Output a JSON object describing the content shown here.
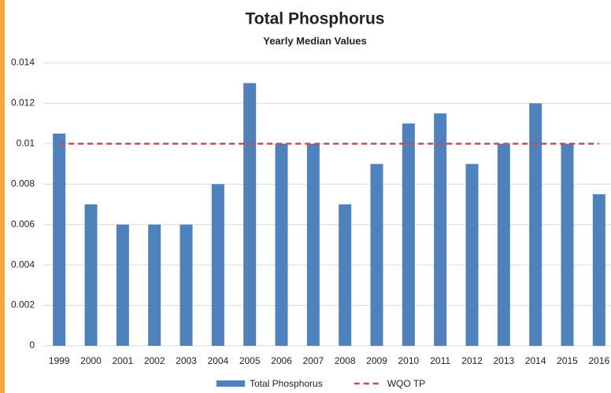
{
  "chart_data": {
    "type": "bar",
    "title": "Total Phosphorus",
    "subtitle": "Yearly Median Values",
    "categories": [
      "1999",
      "2000",
      "2001",
      "2002",
      "2003",
      "2004",
      "2005",
      "2006",
      "2007",
      "2008",
      "2009",
      "2010",
      "2011",
      "2012",
      "2013",
      "2014",
      "2015",
      "2016"
    ],
    "series": [
      {
        "name": "Total Phosphorus",
        "color": "#4f81bd",
        "type": "bar",
        "values": [
          0.0105,
          0.007,
          0.006,
          0.006,
          0.006,
          0.008,
          0.013,
          0.01,
          0.01,
          0.007,
          0.009,
          0.011,
          0.0115,
          0.009,
          0.01,
          0.012,
          0.01,
          0.0075
        ]
      },
      {
        "name": "WQO TP",
        "color": "#c0504d",
        "type": "line",
        "dashed": true,
        "values": [
          0.01,
          0.01,
          0.01,
          0.01,
          0.01,
          0.01,
          0.01,
          0.01,
          0.01,
          0.01,
          0.01,
          0.01,
          0.01,
          0.01,
          0.01,
          0.01,
          0.01,
          0.01
        ]
      }
    ],
    "ylim": [
      0,
      0.014
    ],
    "yticks": [
      0,
      0.002,
      0.004,
      0.006,
      0.008,
      0.01,
      0.012,
      0.014
    ],
    "grid": true,
    "legend": "bottom"
  }
}
